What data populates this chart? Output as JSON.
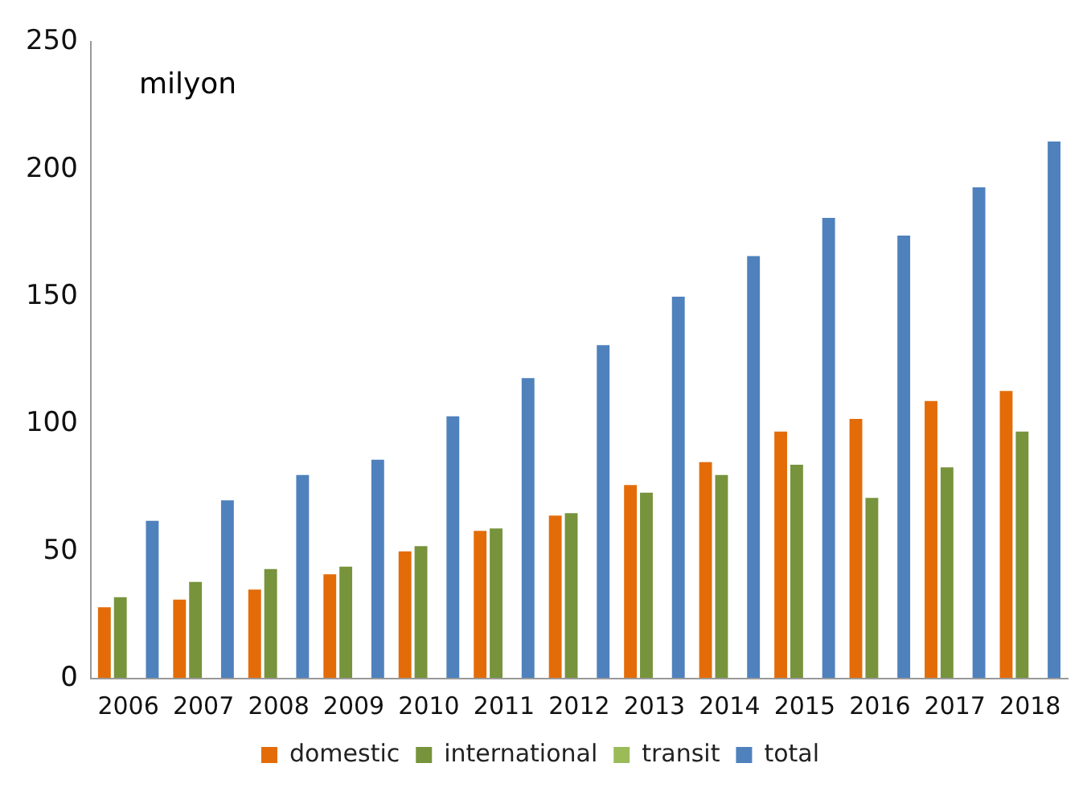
{
  "chart_data": {
    "type": "bar",
    "annotations": [
      "milyon"
    ],
    "categories": [
      "2006",
      "2007",
      "2008",
      "2009",
      "2010",
      "2011",
      "2012",
      "2013",
      "2014",
      "2015",
      "2016",
      "2017",
      "2018"
    ],
    "series": [
      {
        "name": "domestic",
        "color": "#e36c09",
        "values": [
          28,
          31,
          35,
          41,
          50,
          58,
          64,
          76,
          85,
          97,
          102,
          109,
          113
        ]
      },
      {
        "name": "international",
        "color": "#77933c",
        "values": [
          32,
          38,
          43,
          44,
          52,
          59,
          65,
          73,
          80,
          84,
          71,
          83,
          97
        ]
      },
      {
        "name": "transit",
        "color": "#9bbb59",
        "values": [
          0,
          0,
          0,
          0,
          0,
          0,
          0,
          0,
          0,
          0,
          0,
          0,
          0
        ]
      },
      {
        "name": "total",
        "color": "#4f81bd",
        "values": [
          62,
          70,
          80,
          86,
          103,
          118,
          131,
          150,
          166,
          181,
          174,
          193,
          211
        ]
      }
    ],
    "ylim": [
      0,
      250
    ],
    "yticks": [
      0,
      50,
      100,
      150,
      200,
      250
    ],
    "grid": false,
    "legend": "bottom"
  }
}
